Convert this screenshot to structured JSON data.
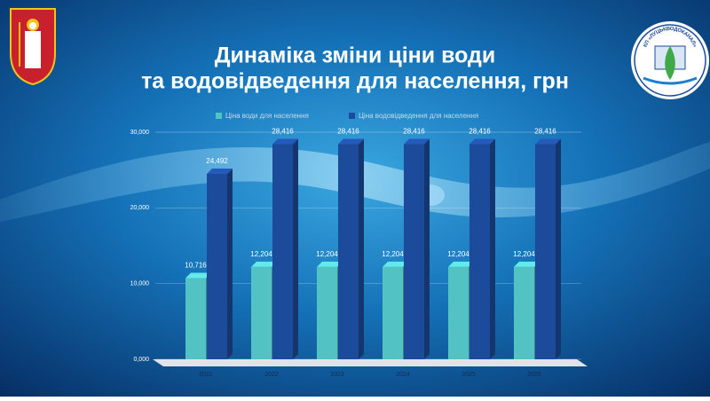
{
  "chart_data": {
    "type": "bar",
    "title": "Динаміка зміни ціни води",
    "subtitle": "та водовідведення для населення, грн",
    "logo_text": "КП «ЛУЦЬКВОДОКАНАЛ»",
    "categories": [
      "2021",
      "2022",
      "2023",
      "2024",
      "2025",
      "2026"
    ],
    "series": [
      {
        "name": "Ціна води для населення",
        "color": "#52c2c3",
        "values": [
          10.716,
          12.204,
          12.204,
          12.204,
          12.204,
          12.204
        ],
        "value_labels": [
          "10,716",
          "12,204",
          "12,204",
          "12,204",
          "12,204",
          "12,204"
        ]
      },
      {
        "name": "Ціна водовідведення для населення",
        "color": "#1d4b9c",
        "values": [
          24.492,
          28.416,
          28.416,
          28.416,
          28.416,
          28.416
        ],
        "value_labels": [
          "24,492",
          "28,416",
          "28,416",
          "28,416",
          "28,416",
          "28,416"
        ]
      }
    ],
    "ylim": [
      0,
      30
    ],
    "yticks": [
      {
        "value": 0,
        "label": "0,000"
      },
      {
        "value": 10,
        "label": "10,000"
      },
      {
        "value": 20,
        "label": "20,000"
      },
      {
        "value": 30,
        "label": "30,000"
      }
    ],
    "grid": true,
    "legend": "top"
  }
}
